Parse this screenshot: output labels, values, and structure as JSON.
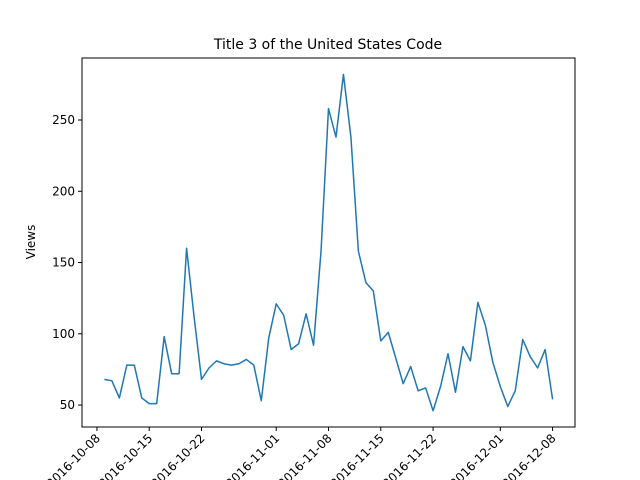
{
  "chart_data": {
    "type": "line",
    "title": "Title 3 of the United States Code",
    "ylabel": "Views",
    "x": [
      "2016-10-09",
      "2016-10-10",
      "2016-10-11",
      "2016-10-12",
      "2016-10-13",
      "2016-10-14",
      "2016-10-15",
      "2016-10-16",
      "2016-10-17",
      "2016-10-18",
      "2016-10-19",
      "2016-10-20",
      "2016-10-21",
      "2016-10-22",
      "2016-10-23",
      "2016-10-24",
      "2016-10-25",
      "2016-10-26",
      "2016-10-27",
      "2016-10-28",
      "2016-10-29",
      "2016-10-30",
      "2016-10-31",
      "2016-11-01",
      "2016-11-02",
      "2016-11-03",
      "2016-11-04",
      "2016-11-05",
      "2016-11-06",
      "2016-11-07",
      "2016-11-08",
      "2016-11-09",
      "2016-11-10",
      "2016-11-11",
      "2016-11-12",
      "2016-11-13",
      "2016-11-14",
      "2016-11-15",
      "2016-11-16",
      "2016-11-17",
      "2016-11-18",
      "2016-11-19",
      "2016-11-20",
      "2016-11-21",
      "2016-11-22",
      "2016-11-23",
      "2016-11-24",
      "2016-11-25",
      "2016-11-26",
      "2016-11-27",
      "2016-11-28",
      "2016-11-29",
      "2016-11-30",
      "2016-12-01",
      "2016-12-02",
      "2016-12-03",
      "2016-12-04",
      "2016-12-05",
      "2016-12-06",
      "2016-12-07",
      "2016-12-08"
    ],
    "series": [
      {
        "name": "Views",
        "color": "#1f77b4",
        "values": [
          68,
          67,
          55,
          78,
          78,
          55,
          51,
          51,
          98,
          72,
          72,
          160,
          112,
          68,
          76,
          81,
          79,
          78,
          79,
          82,
          78,
          53,
          97,
          121,
          113,
          89,
          93,
          114,
          92,
          158,
          258,
          238,
          282,
          238,
          158,
          136,
          130,
          95,
          101,
          83,
          65,
          77,
          60,
          62,
          46,
          63,
          86,
          59,
          91,
          81,
          122,
          106,
          80,
          63,
          49,
          60,
          96,
          84,
          76,
          89,
          54
        ]
      }
    ],
    "xlim": [
      "2016-10-06",
      "2016-12-11"
    ],
    "xticks": [
      "2016-10-08",
      "2016-10-15",
      "2016-10-22",
      "2016-11-01",
      "2016-11-08",
      "2016-11-15",
      "2016-11-22",
      "2016-12-01",
      "2016-12-08"
    ],
    "ylim": [
      34.6,
      293.5
    ],
    "yticks": [
      50,
      100,
      150,
      200,
      250
    ]
  }
}
